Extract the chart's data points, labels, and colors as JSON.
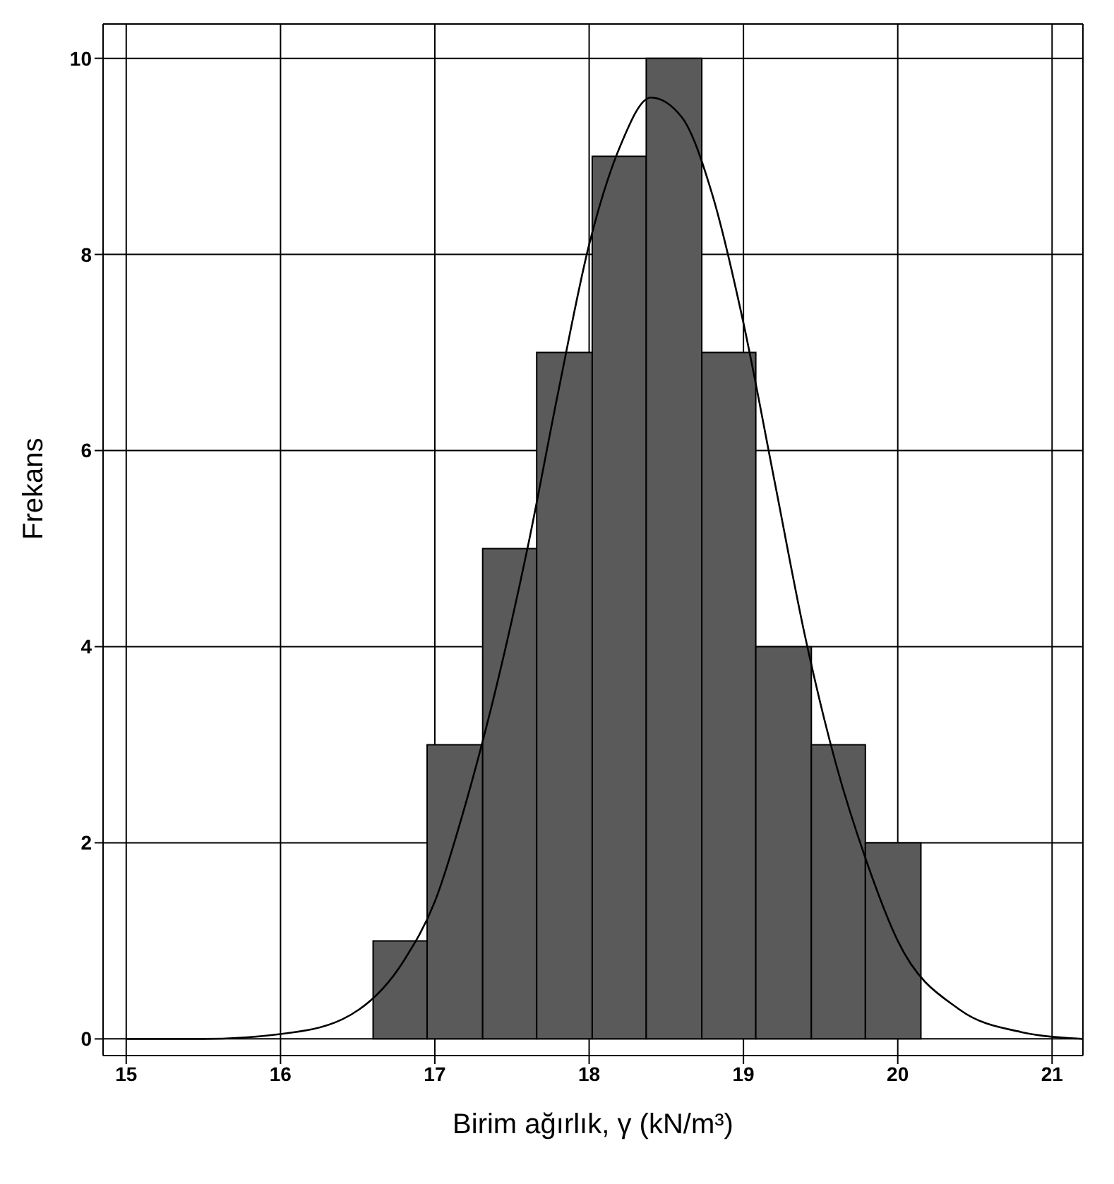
{
  "chart_data": {
    "type": "histogram",
    "xlabel": "Birim ağırlık, γ (kN/m³)",
    "ylabel": "Frekans",
    "bins": [
      16.6,
      16.95,
      17.31,
      17.66,
      18.02,
      18.37,
      18.73,
      19.08,
      19.44,
      19.79,
      20.15
    ],
    "values": [
      1,
      3,
      5,
      7,
      9,
      10,
      7,
      4,
      3,
      2
    ],
    "color": "#5a5a5a",
    "series": [
      {
        "type": "line",
        "color": "#000000",
        "x": [
          15,
          15.5,
          16,
          16.4,
          16.8,
          17,
          17.2,
          17.4,
          17.6,
          17.8,
          18,
          18.2,
          18.4,
          18.6,
          18.8,
          19,
          19.2,
          19.4,
          19.6,
          19.8,
          20,
          20.4,
          20.8,
          21.2
        ],
        "values": [
          0,
          0,
          0.05,
          0.2,
          0.8,
          1.4,
          2.4,
          3.6,
          5,
          6.6,
          8.1,
          9.1,
          9.6,
          9.4,
          8.6,
          7.3,
          5.7,
          4.1,
          2.8,
          1.8,
          1,
          0.3,
          0.07,
          0
        ]
      }
    ],
    "xlim": [
      14.85,
      21.2
    ],
    "xticks": [
      15,
      16,
      17,
      18,
      19,
      20,
      21
    ],
    "ylim": [
      -0.17,
      10.35
    ],
    "yticks": [
      0,
      2,
      4,
      6,
      8,
      10
    ],
    "grid": true,
    "marker": "none"
  }
}
